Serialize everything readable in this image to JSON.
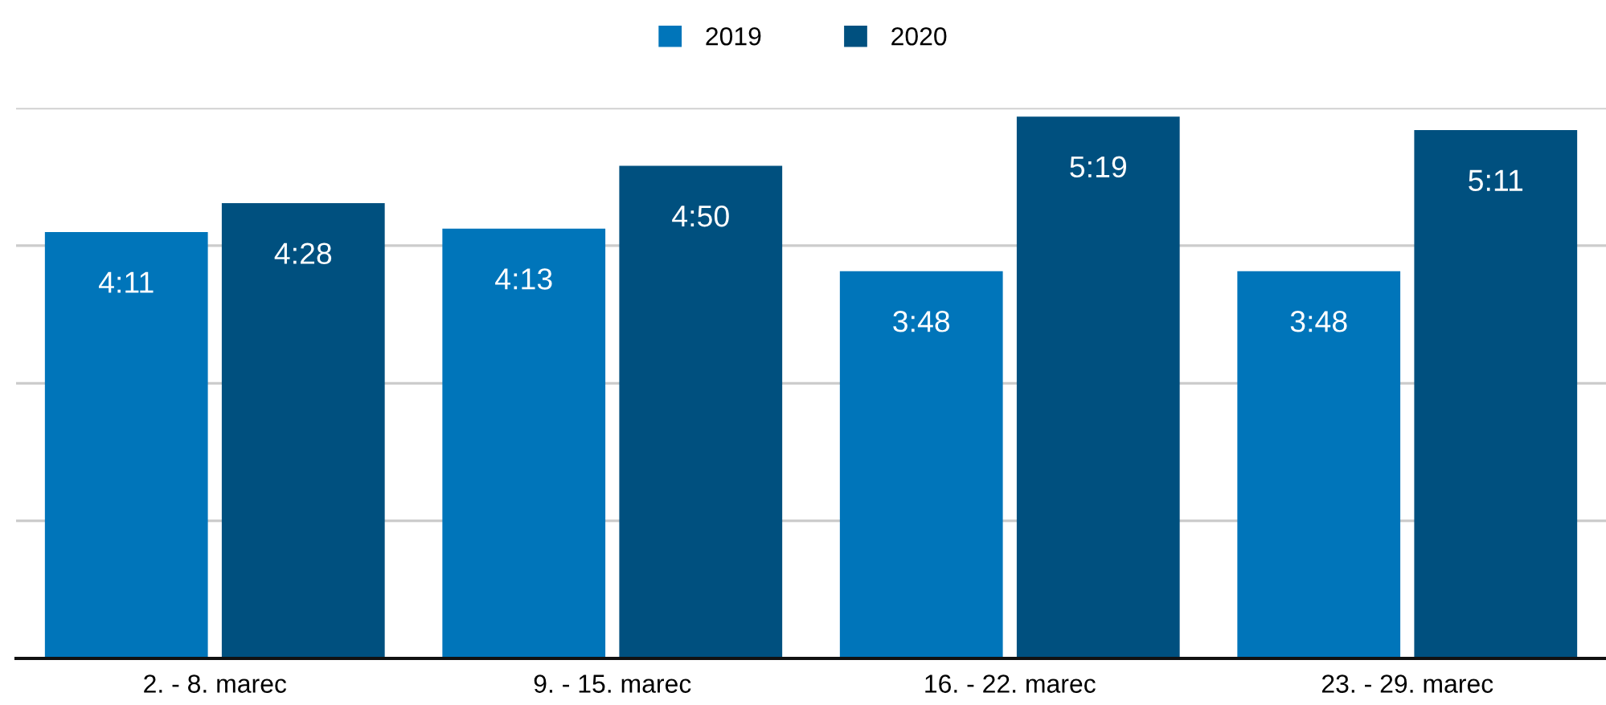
{
  "chart_data": {
    "type": "bar",
    "categories": [
      "2. - 8. marec",
      "9. - 15. marec",
      "16. - 22. marec",
      "23. - 29. marec"
    ],
    "series": [
      {
        "name": "2019",
        "color": "#0075ba",
        "values": [
          4.1833,
          4.2167,
          3.8,
          3.8
        ],
        "value_labels": [
          "4:11",
          "4:13",
          "3:48",
          "3:48"
        ]
      },
      {
        "name": "2020",
        "color": "#00507f",
        "values": [
          4.4667,
          4.8333,
          5.3167,
          5.1833
        ],
        "value_labels": [
          "4:28",
          "4:50",
          "5:19",
          "5:11"
        ]
      }
    ],
    "ylim": [
      0,
      5.4
    ],
    "yticks": [
      0,
      1.35,
      2.7,
      4.05,
      5.4
    ],
    "tick_labels": "x",
    "grid": "y",
    "legend": "top"
  }
}
